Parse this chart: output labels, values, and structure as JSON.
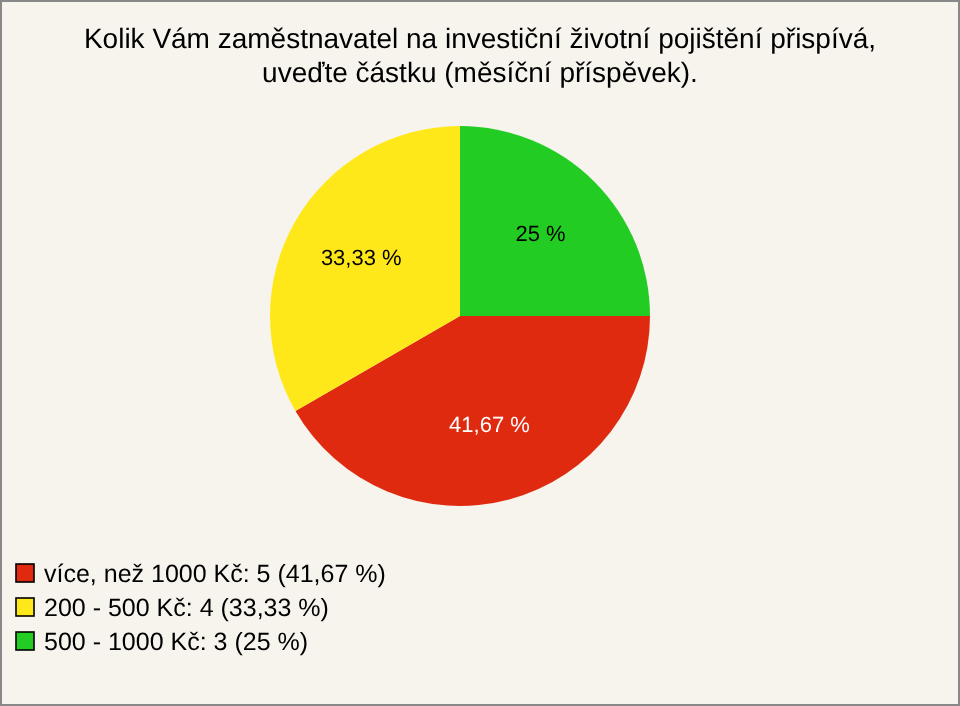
{
  "chart_data": {
    "type": "pie",
    "title": "Kolik Vám zaměstnavatel na investiční životní pojištění přispívá, uveďte částku (měsíční příspěvek).",
    "categories": [
      "více, než 1000 Kč: 5 (41,67 %)",
      "200 - 500 Kč: 4 (33,33 %)",
      "500 - 1000 Kč: 3 (25 %)"
    ],
    "values": [
      41.67,
      33.33,
      25
    ],
    "value_labels": [
      "41,67 %",
      "33,33 %",
      "25 %"
    ],
    "colors": [
      "#e02a10",
      "#ffe81a",
      "#22cc22"
    ],
    "legend": "bottom left"
  }
}
